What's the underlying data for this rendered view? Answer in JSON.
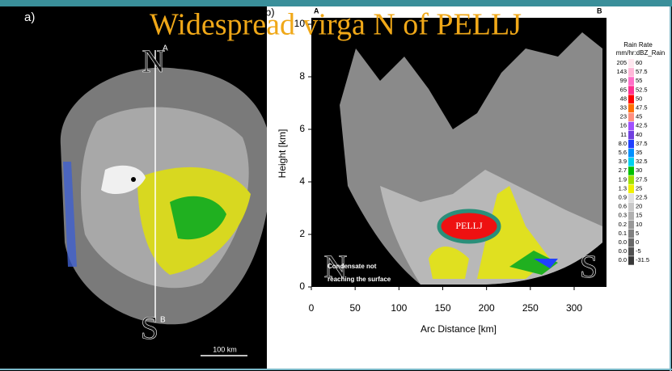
{
  "title": "Widespread virga  N of PELLJ",
  "panel_a": {
    "label": "a)",
    "north": "N",
    "south": "S",
    "point_a": "A",
    "point_b": "B",
    "scale": "100 km"
  },
  "panel_b": {
    "label": "b)",
    "point_a": "A",
    "point_b": "B",
    "y_axis_label": "Height [km]",
    "x_axis_label": "Arc Distance [km]",
    "yticks": [
      0,
      2,
      4,
      6,
      8,
      10
    ],
    "xticks": [
      0,
      50,
      100,
      150,
      200,
      250,
      300
    ],
    "annotation": "PELLJ",
    "note_lines": [
      "Condensate not",
      "reaching the surface"
    ],
    "north": "N",
    "south": "S"
  },
  "legend": {
    "title": "Rain Rate",
    "subtitle": "mm/hr:dBZ_Rain",
    "rows": [
      {
        "rate": "205",
        "dbz": "60",
        "color": "#ffe8f0"
      },
      {
        "rate": "143",
        "dbz": "57.5",
        "color": "#ffb8d8"
      },
      {
        "rate": "99",
        "dbz": "55",
        "color": "#ff70c8"
      },
      {
        "rate": "65",
        "dbz": "52.5",
        "color": "#ff3090"
      },
      {
        "rate": "48",
        "dbz": "50",
        "color": "#ff0000"
      },
      {
        "rate": "33",
        "dbz": "47.5",
        "color": "#ff7000"
      },
      {
        "rate": "23",
        "dbz": "45",
        "color": "#ff9080"
      },
      {
        "rate": "16",
        "dbz": "42.5",
        "color": "#a050ff"
      },
      {
        "rate": "11",
        "dbz": "40",
        "color": "#7040e0"
      },
      {
        "rate": "8.0",
        "dbz": "37.5",
        "color": "#2040ff"
      },
      {
        "rate": "5.6",
        "dbz": "35",
        "color": "#0090ff"
      },
      {
        "rate": "3.9",
        "dbz": "32.5",
        "color": "#00d0f0"
      },
      {
        "rate": "2.7",
        "dbz": "30",
        "color": "#00c000"
      },
      {
        "rate": "1.9",
        "dbz": "27.5",
        "color": "#a0e000"
      },
      {
        "rate": "1.3",
        "dbz": "25",
        "color": "#f0f000"
      },
      {
        "rate": "0.9",
        "dbz": "22.5",
        "color": "#e0e0e0"
      },
      {
        "rate": "0.6",
        "dbz": "20",
        "color": "#c8c8c8"
      },
      {
        "rate": "0.3",
        "dbz": "15",
        "color": "#b0b0b0"
      },
      {
        "rate": "0.2",
        "dbz": "10",
        "color": "#989898"
      },
      {
        "rate": "0.1",
        "dbz": "5",
        "color": "#808080"
      },
      {
        "rate": "0.0",
        "dbz": "0",
        "color": "#686868"
      },
      {
        "rate": "0.0",
        "dbz": "-5",
        "color": "#505050"
      },
      {
        "rate": "0.0",
        "dbz": "-31.5",
        "color": "#383838"
      }
    ]
  }
}
